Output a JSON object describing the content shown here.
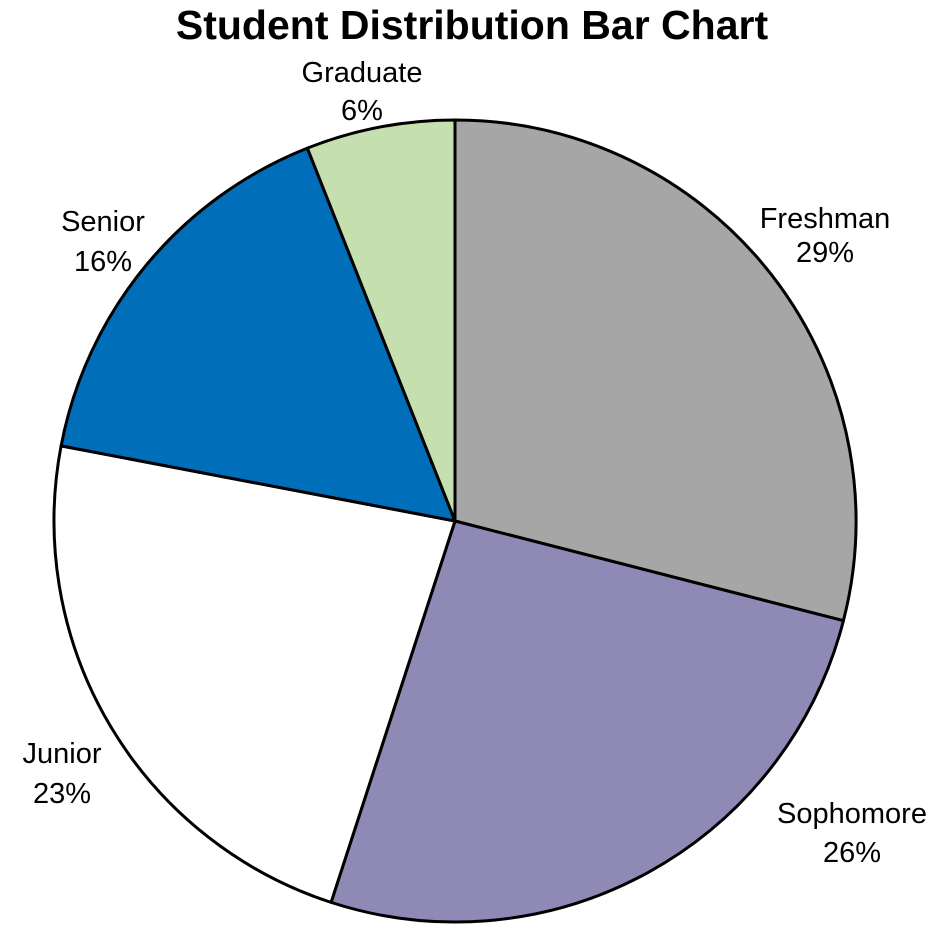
{
  "chart_data": {
    "type": "pie",
    "title": "Student Distribution Bar Chart",
    "start_angle": "12 o'clock",
    "direction": "clockwise",
    "slices": [
      {
        "label": "Freshman",
        "value": 29,
        "display": "29%",
        "color": "#a6a6a6"
      },
      {
        "label": "Sophomore",
        "value": 26,
        "display": "26%",
        "color": "#8f8ab5"
      },
      {
        "label": "Junior",
        "value": 23,
        "display": "23%",
        "color": "#ffffff"
      },
      {
        "label": "Senior",
        "value": 16,
        "display": "16%",
        "color": "#006eb9"
      },
      {
        "label": "Graduate",
        "value": 6,
        "display": "6%",
        "color": "#c5e0ae"
      }
    ],
    "outline_color": "#000000"
  }
}
